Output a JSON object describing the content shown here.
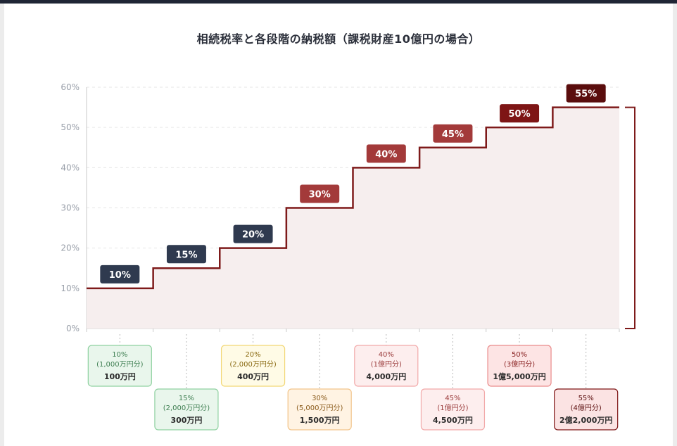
{
  "chart_data": {
    "type": "line",
    "title": "相続税率と各段階の納税額（課税財産10億円の場合）",
    "xlabel": "",
    "ylabel": "",
    "ylim": [
      0,
      60
    ],
    "y_ticks": [
      "0%",
      "10%",
      "20%",
      "30%",
      "40%",
      "50%",
      "60%"
    ],
    "grid": true,
    "series": [
      {
        "values": [
          10,
          15,
          20,
          30,
          40,
          45,
          50,
          55
        ]
      }
    ],
    "step_labels": [
      "10%",
      "15%",
      "20%",
      "30%",
      "40%",
      "45%",
      "50%",
      "55%"
    ],
    "step_colors": [
      "#2f3a4f",
      "#2f3a4f",
      "#2f3a4f",
      "#a33a3a",
      "#a33a3a",
      "#a33a3a",
      "#7e1515",
      "#5a0d0d"
    ],
    "brackets": [
      {
        "rate": "10%",
        "range": "(1,000万円分)",
        "tax": "100万円",
        "bg": "#e9f6ec",
        "border": "#8fd1a0",
        "fg": "#3f7f52",
        "row": 1
      },
      {
        "rate": "15%",
        "range": "(2,000万円分)",
        "tax": "300万円",
        "bg": "#e9f6ec",
        "border": "#8fd1a0",
        "fg": "#3f7f52",
        "row": 2
      },
      {
        "rate": "20%",
        "range": "(2,000万円分)",
        "tax": "400万円",
        "bg": "#fffbe6",
        "border": "#f2d774",
        "fg": "#8a6a12",
        "row": 1
      },
      {
        "rate": "30%",
        "range": "(5,000万円分)",
        "tax": "1,500万円",
        "bg": "#fff3e3",
        "border": "#f2c48a",
        "fg": "#8a5a1a",
        "row": 2
      },
      {
        "rate": "40%",
        "range": "(1億円分)",
        "tax": "4,000万円",
        "bg": "#fdeeee",
        "border": "#f2a9a9",
        "fg": "#9a3b3b",
        "row": 1
      },
      {
        "rate": "45%",
        "range": "(1億円分)",
        "tax": "4,500万円",
        "bg": "#fdeeee",
        "border": "#f2a9a9",
        "fg": "#9a3b3b",
        "row": 2
      },
      {
        "rate": "50%",
        "range": "(3億円分)",
        "tax": "1億5,000万円",
        "bg": "#fde4e4",
        "border": "#e98a8a",
        "fg": "#8a2323",
        "row": 1
      },
      {
        "rate": "55%",
        "range": "(4億円分)",
        "tax": "2億2,000万円",
        "bg": "#fbe3e3",
        "border": "#7e1515",
        "fg": "#5a0d0d",
        "row": 2
      }
    ]
  },
  "colors": {
    "line": "#7e1a1a",
    "fill": "#f6eeee",
    "grid": "#e6e6e6",
    "axis": "#c9c9c9"
  }
}
